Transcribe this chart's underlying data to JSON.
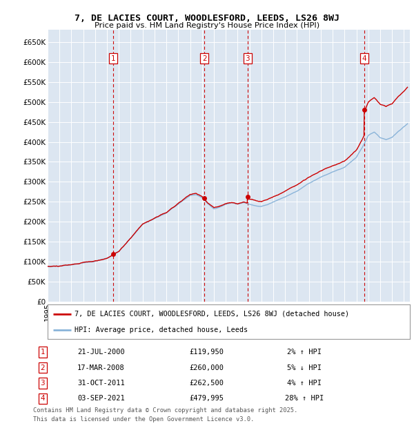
{
  "title_line1": "7, DE LACIES COURT, WOODLESFORD, LEEDS, LS26 8WJ",
  "title_line2": "Price paid vs. HM Land Registry's House Price Index (HPI)",
  "ytick_values": [
    0,
    50000,
    100000,
    150000,
    200000,
    250000,
    300000,
    350000,
    400000,
    450000,
    500000,
    550000,
    600000,
    650000
  ],
  "ylim": [
    0,
    680000
  ],
  "xlim_start": 1995.0,
  "xlim_end": 2025.5,
  "background_color": "#dce6f1",
  "hpi_line_color": "#8ab4d9",
  "sale_line_color": "#cc0000",
  "sale_marker_color": "#cc0000",
  "vline_color": "#cc0000",
  "box_color": "#cc0000",
  "transactions": [
    {
      "label": "1",
      "date_str": "21-JUL-2000",
      "year": 2000.54,
      "price": 119950,
      "pct": "2%",
      "dir": "↑"
    },
    {
      "label": "2",
      "date_str": "17-MAR-2008",
      "year": 2008.21,
      "price": 260000,
      "pct": "5%",
      "dir": "↓"
    },
    {
      "label": "3",
      "date_str": "31-OCT-2011",
      "year": 2011.83,
      "price": 262500,
      "pct": "4%",
      "dir": "↑"
    },
    {
      "label": "4",
      "date_str": "03-SEP-2021",
      "year": 2021.67,
      "price": 479995,
      "pct": "28%",
      "dir": "↑"
    }
  ],
  "legend_entries": [
    "7, DE LACIES COURT, WOODLESFORD, LEEDS, LS26 8WJ (detached house)",
    "HPI: Average price, detached house, Leeds"
  ],
  "footer_line1": "Contains HM Land Registry data © Crown copyright and database right 2025.",
  "footer_line2": "This data is licensed under the Open Government Licence v3.0."
}
